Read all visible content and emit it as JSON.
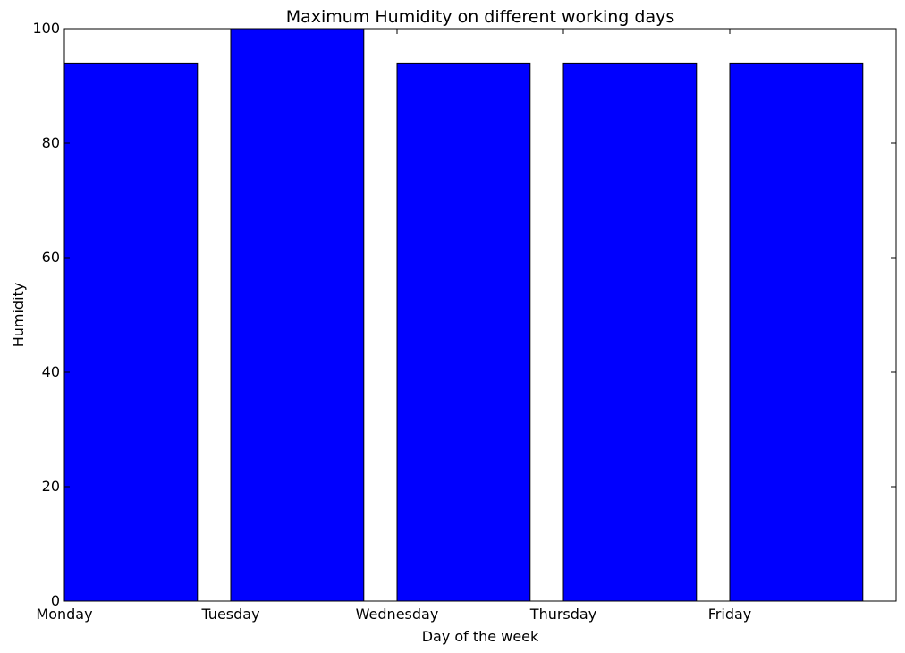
{
  "chart_data": {
    "type": "bar",
    "title": "Maximum Humidity on different working days",
    "xlabel": "Day of the week",
    "ylabel": "Humidity",
    "categories": [
      "Monday",
      "Tuesday",
      "Wednesday",
      "Thursday",
      "Friday"
    ],
    "values": [
      94,
      100,
      94,
      94,
      94
    ],
    "ylim": [
      0,
      100
    ],
    "yticks": [
      0,
      20,
      40,
      60,
      80,
      100
    ],
    "bar_color": "#0000ff",
    "edge_color": "#000000",
    "grid": false
  }
}
